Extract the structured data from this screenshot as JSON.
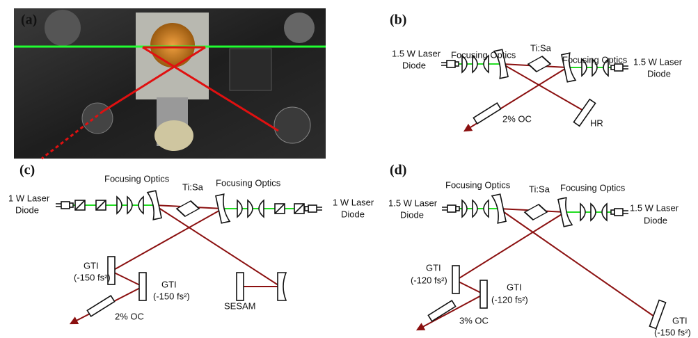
{
  "panels": [
    {
      "label": "(a)"
    },
    {
      "label": "(b)",
      "texts": [
        "Focusing Optics",
        "Ti:Sa",
        "Focusing Optics",
        "1.5 W Laser",
        "Diode",
        "1.5 W Laser",
        "Diode",
        "2% OC",
        "HR"
      ]
    },
    {
      "label": "(c)",
      "texts": [
        "Focusing Optics",
        "Ti:Sa",
        "Focusing Optics",
        "1 W Laser",
        "Diode",
        "1 W Laser",
        "Diode",
        "GTI",
        "(-150 fs²)",
        "GTI",
        "(-150 fs²)",
        "SESAM",
        "2% OC"
      ]
    },
    {
      "label": "(d)",
      "texts": [
        "Focusing Optics",
        "Ti:Sa",
        "Focusing Optics",
        "1.5 W Laser",
        "Diode",
        "1.5 W Laser",
        "Diode",
        "GTI",
        "(-120 fs²)",
        "GTI",
        "(-120 fs²)",
        "3% OC",
        "GTI",
        "(-150 fs²)"
      ]
    }
  ]
}
